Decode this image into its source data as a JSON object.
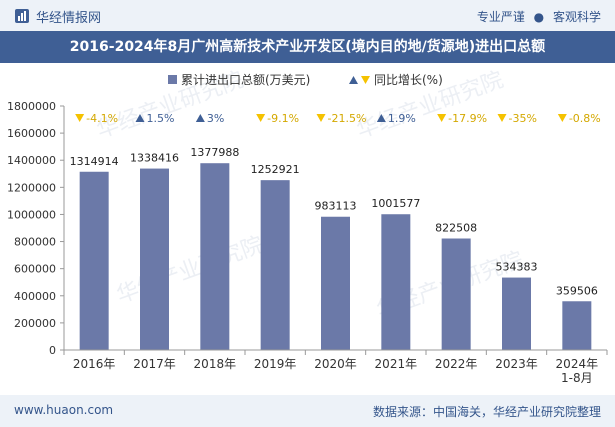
{
  "header": {
    "brand": "华经情报网",
    "tag1": "专业严谨",
    "separator": "●",
    "tag2": "客观科学"
  },
  "footer": {
    "url": "www.huaon.com",
    "source": "数据来源：中国海关，华经产业研究院整理"
  },
  "colors": {
    "bar": "#6b79a8",
    "up": "#3f5f95",
    "down": "#f5c200",
    "title_bg": "#3f5f95",
    "header_bg": "#edf2f8"
  },
  "chart_data": {
    "type": "bar",
    "title": "2016-2024年8月广州高新技术产业开发区(境内目的地/货源地)进出口总额",
    "categories": [
      "2016年",
      "2017年",
      "2018年",
      "2019年",
      "2020年",
      "2021年",
      "2022年",
      "2023年",
      "2024年 1-8月"
    ],
    "series": [
      {
        "name": "累计进出口总额(万美元)",
        "values": [
          1314914,
          1338416,
          1377988,
          1252921,
          983113,
          1001577,
          822508,
          534383,
          359506
        ],
        "labels": [
          "1314914",
          "1338416",
          "1377988",
          "1252921",
          "983113",
          "1001577",
          "822508",
          "534383",
          "359506"
        ]
      },
      {
        "name": "同比增长(%)",
        "values": [
          -4.1,
          1.5,
          3,
          -9.1,
          -21.5,
          1.9,
          -17.9,
          -35,
          -0.8
        ],
        "labels": [
          "-4.1%",
          "1.5%",
          "3%",
          "-9.1%",
          "-21.5%",
          "1.9%",
          "-17.9%",
          "-35%",
          "-0.8%"
        ]
      }
    ],
    "ylim": [
      0,
      1800000
    ],
    "yticks": [
      0,
      200000,
      400000,
      600000,
      800000,
      1000000,
      1200000,
      1400000,
      1600000,
      1800000
    ],
    "ytick_labels": [
      "0",
      "200000",
      "400000",
      "600000",
      "800000",
      "1000000",
      "1200000",
      "1400000",
      "1600000",
      "1800000"
    ],
    "legend_position": "top-center",
    "grid": false,
    "watermark": "华经产业研究院"
  }
}
